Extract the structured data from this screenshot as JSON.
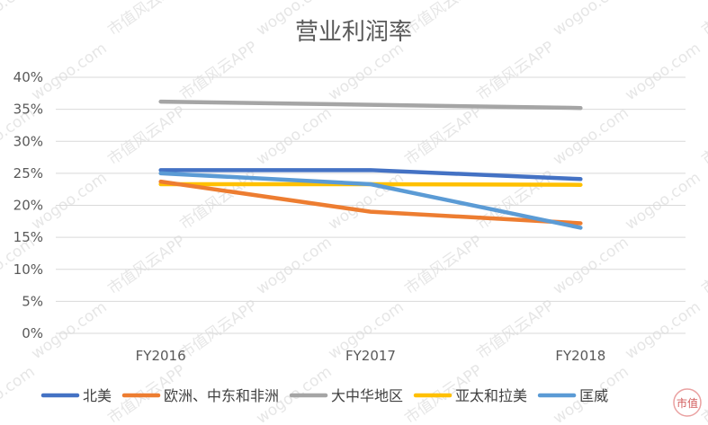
{
  "chart_data": {
    "type": "line",
    "title": "营业利润率",
    "xlabel": "",
    "ylabel": "",
    "categories": [
      "FY2016",
      "FY2017",
      "FY2018"
    ],
    "ylim": [
      0,
      40
    ],
    "yticks": [
      "0%",
      "5%",
      "10%",
      "15%",
      "20%",
      "25%",
      "30%",
      "35%",
      "40%"
    ],
    "grid": true,
    "legend_position": "bottom",
    "series": [
      {
        "name": "北美",
        "values": [
          25.5,
          25.5,
          24.1
        ],
        "color": "#4472c4"
      },
      {
        "name": "欧洲、中东和非洲",
        "values": [
          23.7,
          19.0,
          17.2
        ],
        "color": "#ed7d31"
      },
      {
        "name": "大中华地区",
        "values": [
          36.2,
          35.7,
          35.2
        ],
        "color": "#a5a5a5"
      },
      {
        "name": "亚太和拉美",
        "values": [
          23.3,
          23.3,
          23.2
        ],
        "color": "#ffc000"
      },
      {
        "name": "匡威",
        "values": [
          25.0,
          23.3,
          16.5
        ],
        "color": "#5b9bd5"
      }
    ]
  },
  "watermark": {
    "texts": [
      "wogoo.com",
      "市值风云APP"
    ],
    "logo_text": "市值"
  }
}
